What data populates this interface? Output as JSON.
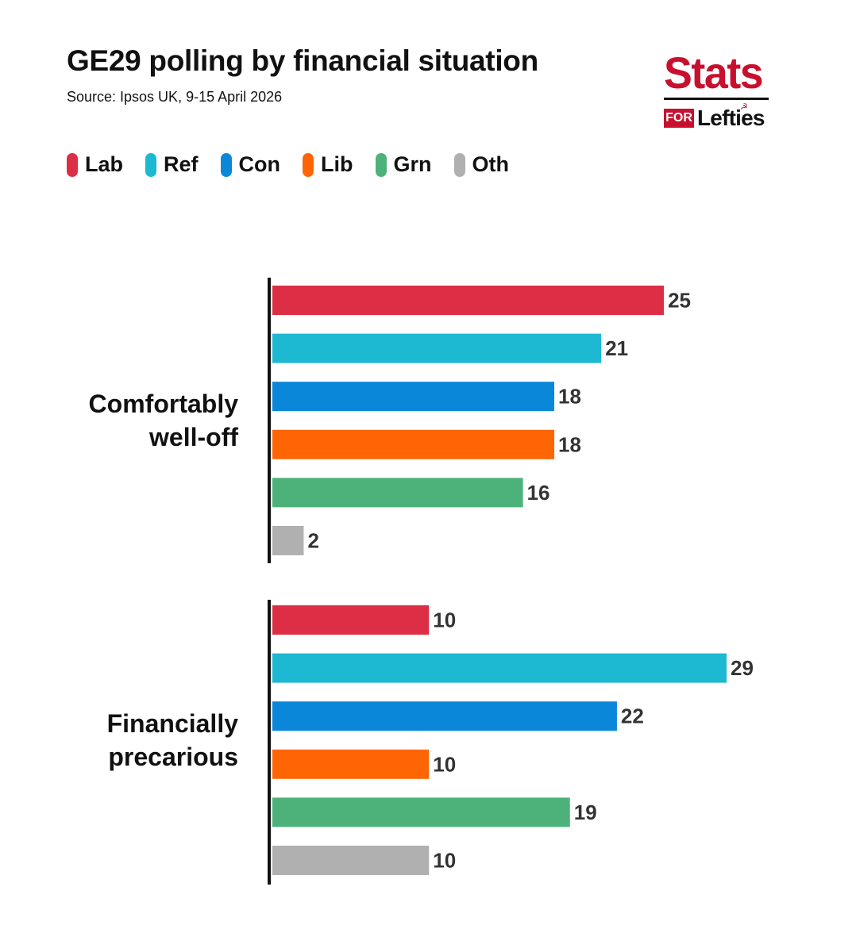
{
  "header": {
    "title": "GE29 polling by financial situation",
    "subtitle": "Source: Ipsos UK, 9-15 April 2026"
  },
  "logo": {
    "stats": "Stats",
    "for": "FOR",
    "lefties": "Lefties",
    "symbol": "☭"
  },
  "colors": {
    "Lab": "#dc2e45",
    "Ref": "#1db8d2",
    "Con": "#0a87d8",
    "Lib": "#ff6505",
    "Grn": "#4cb27a",
    "Oth": "#b0b0b0"
  },
  "chart_data": {
    "type": "bar",
    "orientation": "horizontal",
    "title": "GE29 polling by financial situation",
    "subtitle": "Source: Ipsos UK, 9-15 April 2026",
    "legend": [
      "Lab",
      "Ref",
      "Con",
      "Lib",
      "Grn",
      "Oth"
    ],
    "legend_placement": "top-left",
    "grid": false,
    "xlim": [
      0,
      29
    ],
    "groups": [
      {
        "label_lines": [
          "Comfortably",
          "well-off"
        ],
        "values": [
          {
            "party": "Lab",
            "value": 25
          },
          {
            "party": "Ref",
            "value": 21
          },
          {
            "party": "Con",
            "value": 18
          },
          {
            "party": "Lib",
            "value": 18
          },
          {
            "party": "Grn",
            "value": 16
          },
          {
            "party": "Oth",
            "value": 2
          }
        ]
      },
      {
        "label_lines": [
          "Financially",
          "precarious"
        ],
        "values": [
          {
            "party": "Lab",
            "value": 10
          },
          {
            "party": "Ref",
            "value": 29
          },
          {
            "party": "Con",
            "value": 22
          },
          {
            "party": "Lib",
            "value": 10
          },
          {
            "party": "Grn",
            "value": 19
          },
          {
            "party": "Oth",
            "value": 10
          }
        ]
      }
    ]
  }
}
